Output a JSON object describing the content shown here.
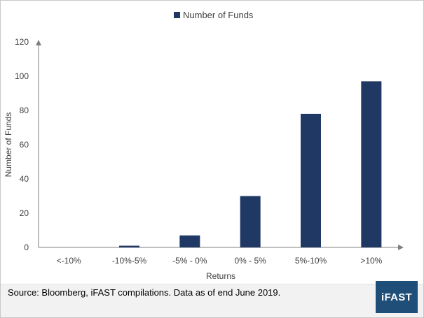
{
  "chart_data": {
    "type": "bar",
    "categories": [
      "<-10%",
      "-10%-5%",
      "-5% - 0%",
      "0% - 5%",
      "5%-10%",
      ">10%"
    ],
    "series": [
      {
        "name": "Number of Funds",
        "values": [
          0,
          1,
          7,
          30,
          78,
          97
        ]
      }
    ],
    "title": "",
    "xlabel": "Returns",
    "ylabel": "Number  of Funds",
    "ylim": [
      0,
      120
    ],
    "yticks": [
      0,
      20,
      40,
      60,
      80,
      100,
      120
    ],
    "grid": false,
    "legend": "top-center",
    "bar_color": "#1f3864"
  },
  "footer": {
    "source": "Source: Bloomberg, iFAST compilations. Data as of end June 2019.",
    "logo_text": "iFAST"
  }
}
